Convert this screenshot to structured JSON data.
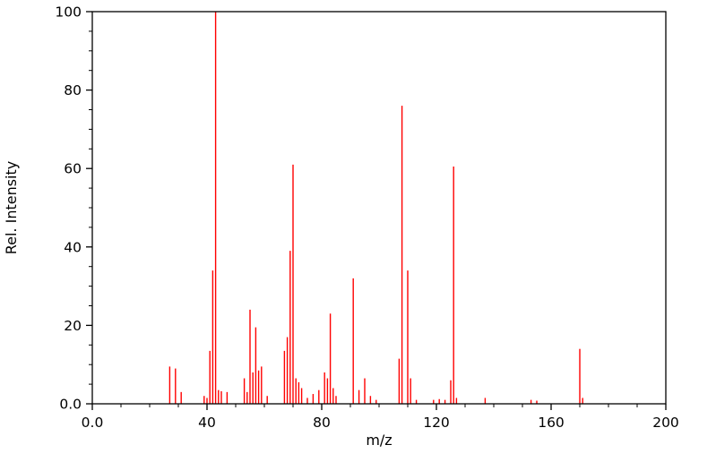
{
  "chart_data": {
    "type": "bar",
    "subtype": "mass-spectrum-stick-plot",
    "title": "",
    "xlabel": "m/z",
    "ylabel": "Rel. Intensity",
    "xlim": [
      0,
      200
    ],
    "ylim": [
      0,
      100
    ],
    "grid": false,
    "legend": "none",
    "frame": true,
    "colors": {
      "stick": "#ff0000",
      "axis": "#000000",
      "background": "#ffffff"
    },
    "x_ticks": [
      {
        "value": 0,
        "label": "0.0"
      },
      {
        "value": 40,
        "label": "40"
      },
      {
        "value": 80,
        "label": "80"
      },
      {
        "value": 120,
        "label": "120"
      },
      {
        "value": 160,
        "label": "160"
      },
      {
        "value": 200,
        "label": "200"
      }
    ],
    "y_ticks": [
      {
        "value": 0,
        "label": "0.0"
      },
      {
        "value": 20,
        "label": "20"
      },
      {
        "value": 40,
        "label": "40"
      },
      {
        "value": 60,
        "label": "60"
      },
      {
        "value": 80,
        "label": "80"
      },
      {
        "value": 100,
        "label": "100"
      }
    ],
    "x_minor_step": 10,
    "y_minor_step": 5,
    "peaks_format": "[m/z, rel_intensity]",
    "peaks": [
      [
        27,
        9.5
      ],
      [
        29,
        9
      ],
      [
        31,
        3
      ],
      [
        39,
        2
      ],
      [
        40,
        1.5
      ],
      [
        41,
        13.5
      ],
      [
        42,
        34
      ],
      [
        43,
        100
      ],
      [
        44,
        3.5
      ],
      [
        45,
        3.2
      ],
      [
        47,
        3
      ],
      [
        53,
        6.5
      ],
      [
        54,
        3
      ],
      [
        55,
        24
      ],
      [
        56,
        8
      ],
      [
        57,
        19.5
      ],
      [
        58,
        8.5
      ],
      [
        59,
        9.5
      ],
      [
        61,
        2
      ],
      [
        67,
        13.5
      ],
      [
        68,
        17
      ],
      [
        69,
        39
      ],
      [
        70,
        61
      ],
      [
        71,
        6.5
      ],
      [
        72,
        5.5
      ],
      [
        73,
        4
      ],
      [
        75,
        1.5
      ],
      [
        77,
        2.5
      ],
      [
        79,
        3.5
      ],
      [
        81,
        8
      ],
      [
        82,
        6.5
      ],
      [
        83,
        23
      ],
      [
        84,
        4
      ],
      [
        85,
        2
      ],
      [
        91,
        32
      ],
      [
        93,
        3.5
      ],
      [
        95,
        6.5
      ],
      [
        97,
        2
      ],
      [
        99,
        1
      ],
      [
        107,
        11.5
      ],
      [
        108,
        76
      ],
      [
        110,
        34
      ],
      [
        111,
        6.5
      ],
      [
        113,
        1
      ],
      [
        119,
        1
      ],
      [
        121,
        1.2
      ],
      [
        123,
        1
      ],
      [
        125,
        6
      ],
      [
        126,
        60.5
      ],
      [
        127,
        1.5
      ],
      [
        137,
        1.5
      ],
      [
        153,
        1
      ],
      [
        155,
        0.8
      ],
      [
        170,
        14
      ],
      [
        171,
        1.5
      ]
    ]
  }
}
